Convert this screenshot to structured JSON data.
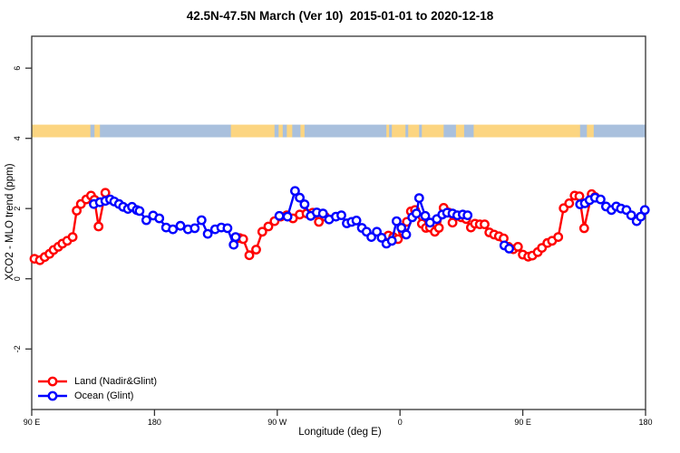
{
  "chart_data": {
    "type": "line",
    "title": "42.5N-47.5N March (Ver 10)  2015-01-01 to 2020-12-18",
    "xlabel": "Longitude (deg E)",
    "ylabel": "XCO2 - MLO trend (ppm)",
    "frame_color": "#333333",
    "text_color": "#000000",
    "x_axis": {
      "range": [
        90,
        540
      ],
      "ticks": [
        90,
        180,
        270,
        360,
        450,
        540
      ],
      "tick_labels": [
        "90 E",
        "180",
        "90 W",
        "0",
        "90 E",
        "180"
      ],
      "note": "longitude wraps eastward from 90E through 180, 90W, 0, 90E to 180"
    },
    "y_axis": {
      "range": [
        -3.7,
        6.9
      ],
      "ticks": [
        -2,
        0,
        2,
        4,
        6
      ],
      "tick_labels": [
        "-2",
        "0",
        "2",
        "4",
        "6"
      ]
    },
    "grid": "off",
    "legend_position": "bottom-left",
    "marker": "open-circle",
    "series": [
      {
        "id": "land-series",
        "name": "Land (Nadir&Glint)",
        "color": "#ff0000",
        "segments": [
          [
            [
              92,
              0.57
            ],
            [
              96,
              0.53
            ],
            [
              99.5,
              0.62
            ],
            [
              103,
              0.71
            ],
            [
              106,
              0.82
            ],
            [
              109.5,
              0.91
            ],
            [
              112.5,
              1.0
            ],
            [
              116,
              1.08
            ],
            [
              120,
              1.19
            ],
            [
              123,
              1.94
            ],
            [
              126,
              2.13
            ],
            [
              130,
              2.26
            ],
            [
              133.5,
              2.37
            ],
            [
              136,
              2.25
            ],
            [
              139,
              1.49
            ],
            [
              144,
              2.45
            ]
          ],
          [
            [
              242.5,
              1.16
            ],
            [
              245,
              1.13
            ],
            [
              249.5,
              0.67
            ],
            [
              254.5,
              0.83
            ],
            [
              259,
              1.34
            ],
            [
              263.5,
              1.49
            ],
            [
              268,
              1.64
            ],
            [
              272.5,
              1.77
            ],
            [
              277,
              1.81
            ],
            [
              281.5,
              1.72
            ],
            [
              286.5,
              1.83
            ],
            [
              291.5,
              1.86
            ],
            [
              296,
              1.88
            ],
            [
              300.5,
              1.62
            ],
            [
              305,
              1.77
            ]
          ],
          [
            [
              351.5,
              1.23
            ],
            [
              355,
              1.19
            ],
            [
              358.5,
              1.13
            ],
            [
              362,
              1.35
            ],
            [
              365,
              1.62
            ],
            [
              368,
              1.92
            ],
            [
              371,
              1.96
            ],
            [
              376,
              1.57
            ],
            [
              379,
              1.45
            ],
            [
              382,
              1.46
            ],
            [
              385.5,
              1.34
            ],
            [
              388.5,
              1.45
            ],
            [
              392,
              2.02
            ],
            [
              395.5,
              1.89
            ],
            [
              398.5,
              1.6
            ],
            [
              402,
              1.79
            ],
            [
              405,
              1.75
            ],
            [
              408.5,
              1.7
            ],
            [
              412,
              1.46
            ],
            [
              415,
              1.57
            ],
            [
              418.5,
              1.55
            ],
            [
              422,
              1.55
            ],
            [
              425.5,
              1.32
            ],
            [
              429,
              1.26
            ],
            [
              432.5,
              1.21
            ],
            [
              436,
              1.15
            ],
            [
              439.5,
              0.91
            ],
            [
              443,
              0.84
            ],
            [
              446.5,
              0.91
            ],
            [
              450,
              0.69
            ],
            [
              454,
              0.63
            ],
            [
              457,
              0.66
            ],
            [
              461,
              0.76
            ],
            [
              464,
              0.88
            ],
            [
              468,
              1.02
            ],
            [
              471.5,
              1.08
            ],
            [
              476,
              1.19
            ],
            [
              480,
              2.01
            ],
            [
              484,
              2.15
            ],
            [
              488,
              2.37
            ],
            [
              491.5,
              2.35
            ],
            [
              495,
              1.44
            ],
            [
              500.5,
              2.41
            ],
            [
              503,
              2.33
            ]
          ]
        ]
      },
      {
        "id": "ocean-series",
        "name": "Ocean (Glint)",
        "color": "#0000ff",
        "segments": [
          [
            [
              135.5,
              2.13
            ],
            [
              140,
              2.18
            ],
            [
              144,
              2.22
            ],
            [
              147.5,
              2.26
            ],
            [
              150.5,
              2.2
            ],
            [
              154,
              2.13
            ],
            [
              157,
              2.05
            ],
            [
              160.5,
              1.99
            ],
            [
              163.5,
              2.05
            ],
            [
              167,
              1.96
            ],
            [
              169,
              1.93
            ],
            [
              174,
              1.67
            ],
            [
              179,
              1.8
            ],
            [
              183.5,
              1.72
            ],
            [
              188.5,
              1.46
            ],
            [
              193.5,
              1.41
            ],
            [
              199,
              1.51
            ],
            [
              204.5,
              1.41
            ],
            [
              209.5,
              1.44
            ],
            [
              214.5,
              1.67
            ],
            [
              219,
              1.28
            ],
            [
              224.5,
              1.41
            ],
            [
              229,
              1.46
            ],
            [
              233.5,
              1.44
            ],
            [
              238,
              0.97
            ],
            [
              239.5,
              1.19
            ]
          ],
          [
            [
              271.5,
              1.79
            ],
            [
              277.5,
              1.77
            ],
            [
              283,
              2.5
            ],
            [
              286.5,
              2.31
            ],
            [
              290,
              2.12
            ],
            [
              294.5,
              1.79
            ],
            [
              299,
              1.89
            ],
            [
              303.5,
              1.86
            ],
            [
              308,
              1.69
            ],
            [
              313,
              1.77
            ],
            [
              317,
              1.81
            ],
            [
              321,
              1.58
            ],
            [
              324.5,
              1.62
            ],
            [
              328,
              1.66
            ],
            [
              332,
              1.45
            ],
            [
              335.5,
              1.34
            ],
            [
              339,
              1.19
            ],
            [
              343,
              1.34
            ],
            [
              346.5,
              1.17
            ],
            [
              350,
              1.0
            ],
            [
              354,
              1.08
            ],
            [
              357.5,
              1.64
            ],
            [
              361,
              1.45
            ],
            [
              364.5,
              1.26
            ],
            [
              369,
              1.75
            ],
            [
              372,
              1.86
            ],
            [
              374,
              2.3
            ],
            [
              378.5,
              1.79
            ],
            [
              382,
              1.6
            ],
            [
              387,
              1.7
            ],
            [
              391,
              1.83
            ],
            [
              394.5,
              1.88
            ],
            [
              398.5,
              1.86
            ],
            [
              402,
              1.81
            ],
            [
              406,
              1.83
            ],
            [
              409.5,
              1.81
            ]
          ],
          [
            [
              436.5,
              0.95
            ],
            [
              440,
              0.86
            ]
          ],
          [
            [
              492,
              2.12
            ],
            [
              495.5,
              2.15
            ],
            [
              499,
              2.24
            ],
            [
              503,
              2.31
            ],
            [
              507,
              2.26
            ],
            [
              511,
              2.06
            ],
            [
              515,
              1.96
            ],
            [
              518.5,
              2.06
            ],
            [
              522,
              2.0
            ],
            [
              526,
              1.96
            ],
            [
              529.5,
              1.81
            ],
            [
              533.5,
              1.64
            ],
            [
              536.5,
              1.77
            ],
            [
              539.5,
              1.96
            ]
          ]
        ]
      }
    ],
    "map_strip": {
      "description": "land/ocean map band along 45N latitude",
      "y_range": [
        4.03,
        4.39
      ],
      "land_color": "#fcd581",
      "ocean_color": "#a9c0dd",
      "segments": [
        {
          "from": 90,
          "to": 133,
          "type": "land"
        },
        {
          "from": 133,
          "to": 136,
          "type": "ocean"
        },
        {
          "from": 136,
          "to": 140,
          "type": "land"
        },
        {
          "from": 140,
          "to": 236,
          "type": "ocean"
        },
        {
          "from": 236,
          "to": 268,
          "type": "land"
        },
        {
          "from": 268,
          "to": 271,
          "type": "ocean"
        },
        {
          "from": 271,
          "to": 274,
          "type": "land"
        },
        {
          "from": 274,
          "to": 277,
          "type": "ocean"
        },
        {
          "from": 277,
          "to": 281,
          "type": "land"
        },
        {
          "from": 281,
          "to": 287,
          "type": "ocean"
        },
        {
          "from": 287,
          "to": 290,
          "type": "land"
        },
        {
          "from": 290,
          "to": 350,
          "type": "ocean"
        },
        {
          "from": 350,
          "to": 352,
          "type": "land"
        },
        {
          "from": 352,
          "to": 354,
          "type": "ocean"
        },
        {
          "from": 354,
          "to": 364,
          "type": "land"
        },
        {
          "from": 364,
          "to": 366,
          "type": "ocean"
        },
        {
          "from": 366,
          "to": 374,
          "type": "land"
        },
        {
          "from": 374,
          "to": 376,
          "type": "ocean"
        },
        {
          "from": 376,
          "to": 392,
          "type": "land"
        },
        {
          "from": 392,
          "to": 401,
          "type": "ocean"
        },
        {
          "from": 401,
          "to": 407,
          "type": "land"
        },
        {
          "from": 407,
          "to": 414,
          "type": "ocean"
        },
        {
          "from": 414,
          "to": 492,
          "type": "land"
        },
        {
          "from": 492,
          "to": 497,
          "type": "ocean"
        },
        {
          "from": 497,
          "to": 502,
          "type": "land"
        },
        {
          "from": 502,
          "to": 540,
          "type": "ocean"
        }
      ]
    },
    "legend": {
      "items": [
        {
          "label": "Land (Nadir&Glint)",
          "color": "#ff0000"
        },
        {
          "label": "Ocean (Glint)",
          "color": "#0000ff"
        }
      ]
    }
  }
}
